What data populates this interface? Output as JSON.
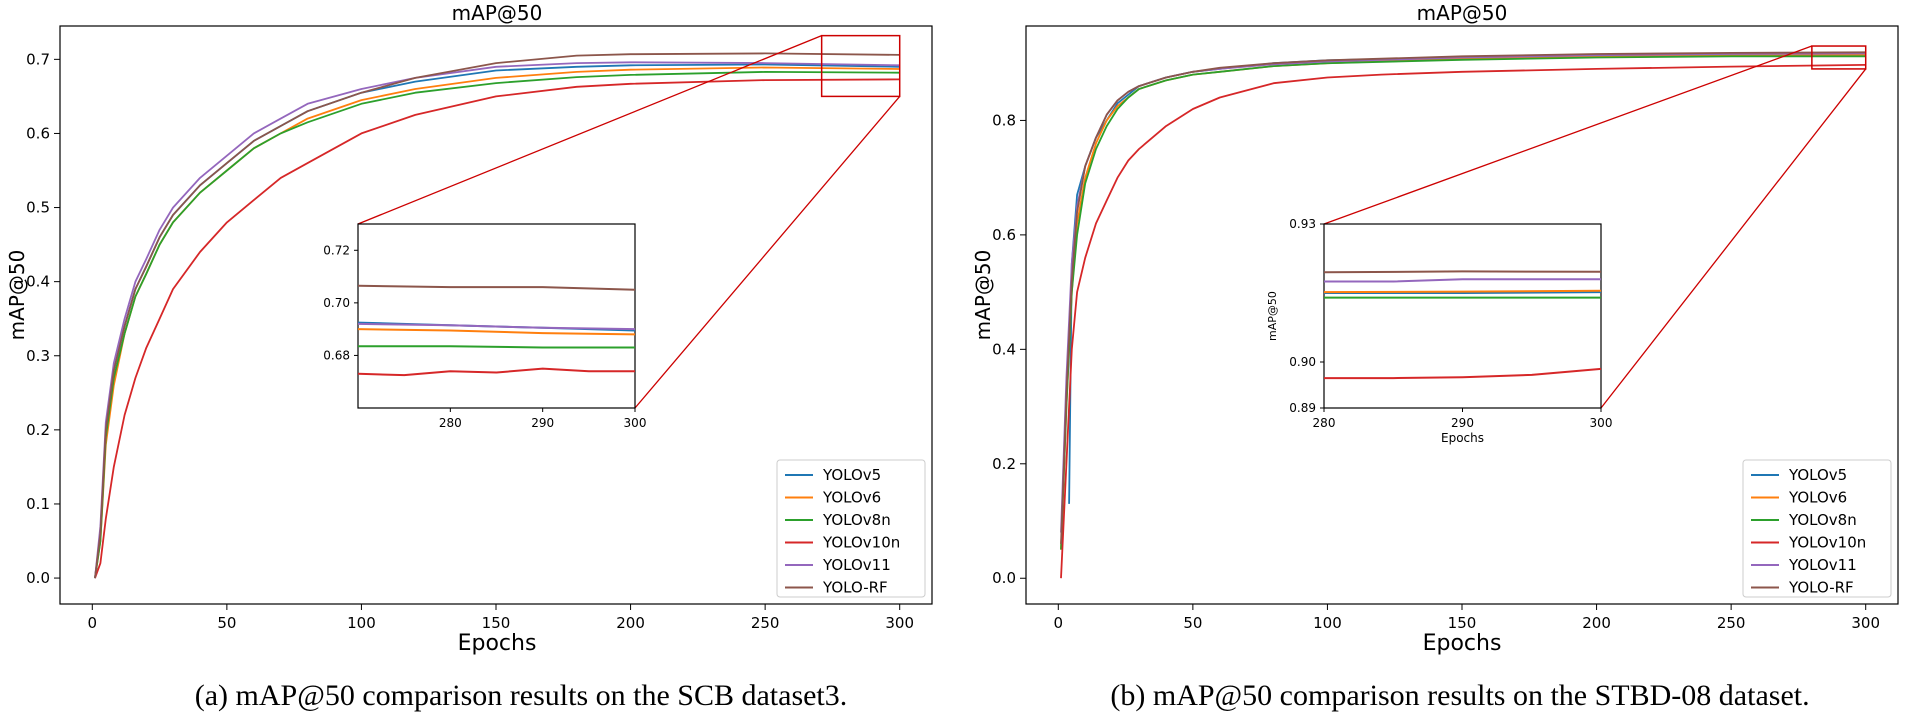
{
  "colors": {
    "YOLOv5": "#1f77b4",
    "YOLOv6": "#ff7f0e",
    "YOLOv8n": "#2ca02c",
    "YOLOv10n": "#d62728",
    "YOLOv11": "#9467bd",
    "YOLO-RF": "#8c564b",
    "zoom_box": "#cc0000"
  },
  "chart_data": [
    {
      "type": "line",
      "title": "mAP@50",
      "xlabel": "Epochs",
      "ylabel": "mAP@50",
      "caption": "(a) mAP@50 comparison results on the SCB dataset3.",
      "xlim": [
        -12,
        312
      ],
      "ylim": [
        -0.035,
        0.745
      ],
      "xticks": [
        0,
        50,
        100,
        150,
        200,
        250,
        300
      ],
      "yticks": [
        0.0,
        0.1,
        0.2,
        0.3,
        0.4,
        0.5,
        0.6,
        0.7
      ],
      "ytick_labels": [
        "0.0",
        "0.1",
        "0.2",
        "0.3",
        "0.4",
        "0.5",
        "0.6",
        "0.7"
      ],
      "legend_position": "lower-right",
      "series": [
        {
          "name": "YOLOv5",
          "x": [
            1,
            3,
            5,
            8,
            12,
            16,
            20,
            25,
            30,
            40,
            50,
            60,
            70,
            80,
            100,
            120,
            150,
            180,
            200,
            250,
            300
          ],
          "y": [
            0.0,
            0.06,
            0.2,
            0.28,
            0.34,
            0.39,
            0.42,
            0.46,
            0.49,
            0.53,
            0.56,
            0.59,
            0.61,
            0.63,
            0.655,
            0.67,
            0.685,
            0.69,
            0.692,
            0.693,
            0.69
          ]
        },
        {
          "name": "YOLOv6",
          "x": [
            1,
            3,
            5,
            8,
            12,
            16,
            20,
            25,
            30,
            40,
            50,
            60,
            70,
            80,
            100,
            120,
            150,
            180,
            200,
            250,
            300
          ],
          "y": [
            0.0,
            0.05,
            0.18,
            0.26,
            0.33,
            0.38,
            0.41,
            0.45,
            0.48,
            0.52,
            0.55,
            0.58,
            0.6,
            0.62,
            0.645,
            0.66,
            0.675,
            0.683,
            0.686,
            0.689,
            0.687
          ]
        },
        {
          "name": "YOLOv8n",
          "x": [
            1,
            3,
            5,
            8,
            12,
            16,
            20,
            25,
            30,
            40,
            50,
            60,
            70,
            80,
            100,
            120,
            150,
            180,
            200,
            250,
            300
          ],
          "y": [
            0.0,
            0.05,
            0.19,
            0.27,
            0.33,
            0.38,
            0.41,
            0.45,
            0.48,
            0.52,
            0.55,
            0.58,
            0.6,
            0.615,
            0.64,
            0.655,
            0.668,
            0.676,
            0.679,
            0.683,
            0.682
          ]
        },
        {
          "name": "YOLOv10n",
          "x": [
            1,
            3,
            5,
            8,
            12,
            16,
            20,
            25,
            30,
            40,
            50,
            60,
            70,
            80,
            100,
            120,
            150,
            180,
            200,
            250,
            300
          ],
          "y": [
            0.0,
            0.02,
            0.08,
            0.15,
            0.22,
            0.27,
            0.31,
            0.35,
            0.39,
            0.44,
            0.48,
            0.51,
            0.54,
            0.56,
            0.6,
            0.625,
            0.65,
            0.663,
            0.667,
            0.672,
            0.673
          ]
        },
        {
          "name": "YOLOv11",
          "x": [
            1,
            3,
            5,
            8,
            12,
            16,
            20,
            25,
            30,
            40,
            50,
            60,
            70,
            80,
            100,
            120,
            150,
            180,
            200,
            250,
            300
          ],
          "y": [
            0.0,
            0.07,
            0.21,
            0.29,
            0.35,
            0.4,
            0.43,
            0.47,
            0.5,
            0.54,
            0.57,
            0.6,
            0.62,
            0.64,
            0.66,
            0.675,
            0.69,
            0.695,
            0.696,
            0.695,
            0.692
          ]
        },
        {
          "name": "YOLO-RF",
          "x": [
            1,
            3,
            5,
            8,
            12,
            16,
            20,
            25,
            30,
            40,
            50,
            60,
            70,
            80,
            100,
            120,
            150,
            180,
            200,
            250,
            300
          ],
          "y": [
            0.0,
            0.06,
            0.2,
            0.28,
            0.34,
            0.39,
            0.42,
            0.46,
            0.49,
            0.53,
            0.56,
            0.59,
            0.61,
            0.63,
            0.655,
            0.675,
            0.695,
            0.705,
            0.707,
            0.708,
            0.706
          ]
        }
      ],
      "zoom_box": {
        "x": [
          271,
          300
        ],
        "y": [
          0.65,
          0.732
        ]
      },
      "inset": {
        "xlim": [
          270,
          300
        ],
        "ylim": [
          0.66,
          0.73
        ],
        "xticks": [
          280,
          290,
          300
        ],
        "yticks": [
          0.68,
          0.7,
          0.72
        ],
        "ytick_labels": [
          "0.68",
          "0.70",
          "0.72"
        ],
        "ylabel": "",
        "xlabel": "",
        "series": [
          {
            "name": "YOLOv5",
            "x": [
              270,
              280,
              290,
              300
            ],
            "y": [
              0.6925,
              0.6915,
              0.6905,
              0.6895
            ]
          },
          {
            "name": "YOLOv6",
            "x": [
              270,
              280,
              290,
              300
            ],
            "y": [
              0.69,
              0.6895,
              0.6885,
              0.688
            ]
          },
          {
            "name": "YOLOv8n",
            "x": [
              270,
              280,
              290,
              300
            ],
            "y": [
              0.6835,
              0.6835,
              0.683,
              0.683
            ]
          },
          {
            "name": "YOLOv10n",
            "x": [
              270,
              275,
              280,
              285,
              290,
              295,
              300
            ],
            "y": [
              0.673,
              0.6725,
              0.674,
              0.6735,
              0.675,
              0.674,
              0.674
            ]
          },
          {
            "name": "YOLOv11",
            "x": [
              270,
              280,
              290,
              300
            ],
            "y": [
              0.692,
              0.6915,
              0.6905,
              0.69
            ]
          },
          {
            "name": "YOLO-RF",
            "x": [
              270,
              280,
              290,
              300
            ],
            "y": [
              0.7065,
              0.706,
              0.706,
              0.705
            ]
          }
        ]
      }
    },
    {
      "type": "line",
      "title": "mAP@50",
      "xlabel": "Epochs",
      "ylabel": "mAP@50",
      "caption": "(b) mAP@50 comparison results on the STBD-08 dataset.",
      "xlim": [
        -12,
        312
      ],
      "ylim": [
        -0.045,
        0.965
      ],
      "xticks": [
        0,
        50,
        100,
        150,
        200,
        250,
        300
      ],
      "yticks": [
        0.0,
        0.2,
        0.4,
        0.6,
        0.8
      ],
      "ytick_labels": [
        "0.0",
        "0.2",
        "0.4",
        "0.6",
        "0.8"
      ],
      "legend_position": "lower-right",
      "series": [
        {
          "name": "YOLOv5",
          "x": [
            4,
            5,
            7,
            10,
            14,
            18,
            22,
            26,
            30,
            40,
            50,
            60,
            80,
            100,
            150,
            200,
            250,
            300
          ],
          "y": [
            0.13,
            0.55,
            0.67,
            0.72,
            0.77,
            0.8,
            0.83,
            0.845,
            0.86,
            0.875,
            0.885,
            0.89,
            0.9,
            0.905,
            0.91,
            0.913,
            0.914,
            0.915
          ]
        },
        {
          "name": "YOLOv6",
          "x": [
            1,
            3,
            5,
            7,
            10,
            14,
            18,
            22,
            26,
            30,
            40,
            50,
            60,
            80,
            100,
            150,
            200,
            250,
            300
          ],
          "y": [
            0.05,
            0.3,
            0.5,
            0.62,
            0.7,
            0.76,
            0.8,
            0.825,
            0.84,
            0.855,
            0.87,
            0.88,
            0.885,
            0.895,
            0.9,
            0.908,
            0.912,
            0.914,
            0.915
          ]
        },
        {
          "name": "YOLOv8n",
          "x": [
            1,
            3,
            5,
            7,
            10,
            14,
            18,
            22,
            26,
            30,
            40,
            50,
            60,
            80,
            100,
            150,
            200,
            250,
            300
          ],
          "y": [
            0.05,
            0.3,
            0.5,
            0.6,
            0.69,
            0.75,
            0.79,
            0.82,
            0.84,
            0.855,
            0.87,
            0.88,
            0.885,
            0.895,
            0.9,
            0.906,
            0.91,
            0.912,
            0.912
          ]
        },
        {
          "name": "YOLOv10n",
          "x": [
            1,
            3,
            5,
            7,
            10,
            14,
            18,
            22,
            26,
            30,
            40,
            50,
            60,
            80,
            100,
            120,
            150,
            200,
            250,
            300
          ],
          "y": [
            0.0,
            0.2,
            0.4,
            0.5,
            0.56,
            0.62,
            0.66,
            0.7,
            0.73,
            0.75,
            0.79,
            0.82,
            0.84,
            0.865,
            0.875,
            0.88,
            0.885,
            0.89,
            0.894,
            0.897
          ]
        },
        {
          "name": "YOLOv11",
          "x": [
            1,
            3,
            5,
            7,
            10,
            14,
            18,
            22,
            26,
            30,
            40,
            50,
            60,
            80,
            100,
            150,
            200,
            250,
            300
          ],
          "y": [
            0.08,
            0.35,
            0.55,
            0.65,
            0.72,
            0.77,
            0.81,
            0.835,
            0.85,
            0.86,
            0.875,
            0.885,
            0.89,
            0.898,
            0.903,
            0.91,
            0.914,
            0.916,
            0.917
          ]
        },
        {
          "name": "YOLO-RF",
          "x": [
            1,
            3,
            5,
            7,
            10,
            14,
            18,
            22,
            26,
            30,
            40,
            50,
            60,
            80,
            100,
            150,
            200,
            250,
            300
          ],
          "y": [
            0.06,
            0.32,
            0.52,
            0.64,
            0.72,
            0.77,
            0.81,
            0.835,
            0.85,
            0.86,
            0.875,
            0.885,
            0.892,
            0.9,
            0.905,
            0.912,
            0.916,
            0.918,
            0.919
          ]
        }
      ],
      "zoom_box": {
        "x": [
          280,
          300
        ],
        "y": [
          0.89,
          0.93
        ]
      },
      "inset": {
        "xlim": [
          280,
          300
        ],
        "ylim": [
          0.89,
          0.93
        ],
        "xticks": [
          280,
          290,
          300
        ],
        "yticks": [
          0.89,
          0.9,
          0.93
        ],
        "ytick_labels": [
          "0.89",
          "0.90",
          "0.93"
        ],
        "ylabel": "mAP@50",
        "xlabel": "Epochs",
        "series": [
          {
            "name": "YOLOv5",
            "x": [
              280,
              290,
              300
            ],
            "y": [
              0.915,
              0.915,
              0.9152
            ]
          },
          {
            "name": "YOLOv6",
            "x": [
              280,
              290,
              300
            ],
            "y": [
              0.9152,
              0.9153,
              0.9155
            ]
          },
          {
            "name": "YOLOv8n",
            "x": [
              280,
              290,
              300
            ],
            "y": [
              0.914,
              0.914,
              0.914
            ]
          },
          {
            "name": "YOLOv10n",
            "x": [
              280,
              285,
              290,
              295,
              300
            ],
            "y": [
              0.8965,
              0.8965,
              0.8967,
              0.8972,
              0.8985
            ]
          },
          {
            "name": "YOLOv11",
            "x": [
              280,
              285,
              290,
              295,
              300
            ],
            "y": [
              0.9175,
              0.9175,
              0.918,
              0.918,
              0.918
            ]
          },
          {
            "name": "YOLO-RF",
            "x": [
              280,
              290,
              300
            ],
            "y": [
              0.9195,
              0.9197,
              0.9196
            ]
          }
        ]
      }
    }
  ]
}
